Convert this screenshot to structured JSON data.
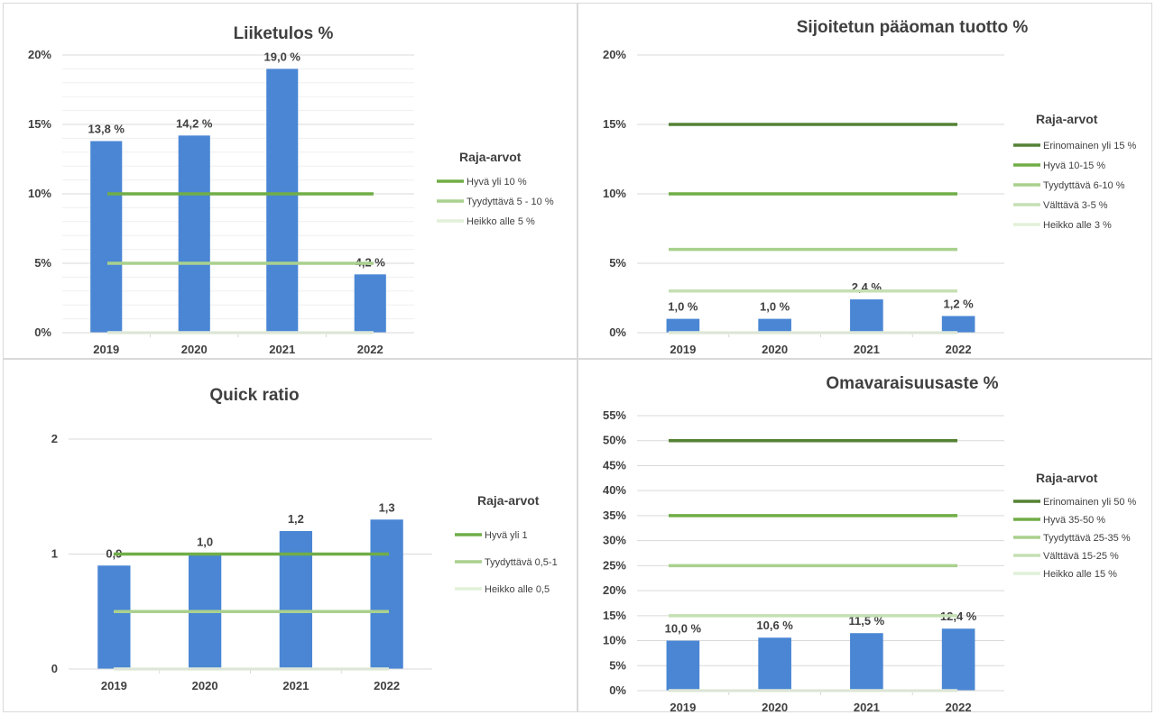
{
  "chart_data": [
    {
      "type": "bar",
      "title": "Liiketulos %",
      "categories": [
        "2019",
        "2020",
        "2021",
        "2022"
      ],
      "values": [
        13.8,
        14.2,
        19.0,
        4.2
      ],
      "value_labels": [
        "13,8 %",
        "14,2 %",
        "19,0 %",
        "4,2 %"
      ],
      "ylim": [
        0,
        20
      ],
      "yticks": [
        0,
        5,
        10,
        15,
        20
      ],
      "ytick_labels": [
        "0%",
        "5%",
        "10%",
        "15%",
        "20%"
      ],
      "minor_grid": true,
      "legend_title": "Raja-arvot",
      "legend_position": "right",
      "thresholds": [
        {
          "name": "Hyvä yli 10 %",
          "value": 10,
          "color": "#70ad47"
        },
        {
          "name": "Tyydyttävä 5 - 10 %",
          "value": 5,
          "color": "#a9d18e"
        },
        {
          "name": "Heikko alle 5 %",
          "value": 0,
          "color": "#e2f0d9"
        }
      ],
      "bar_color": "#4a86d4"
    },
    {
      "type": "bar",
      "title": "Sijoitetun pääoman tuotto %",
      "categories": [
        "2019",
        "2020",
        "2021",
        "2022"
      ],
      "values": [
        1.0,
        1.0,
        2.4,
        1.2
      ],
      "value_labels": [
        "1,0 %",
        "1,0 %",
        "2,4 %",
        "1,2 %"
      ],
      "ylim": [
        0,
        20
      ],
      "yticks": [
        0,
        5,
        10,
        15,
        20
      ],
      "ytick_labels": [
        "0%",
        "5%",
        "10%",
        "15%",
        "20%"
      ],
      "minor_grid": false,
      "legend_title": "Raja-arvot",
      "legend_position": "right",
      "thresholds": [
        {
          "name": "Erinomainen yli 15 %",
          "value": 15,
          "color": "#548235"
        },
        {
          "name": "Hyvä 10-15 %",
          "value": 10,
          "color": "#70ad47"
        },
        {
          "name": "Tyydyttävä 6-10 %",
          "value": 6,
          "color": "#a9d18e"
        },
        {
          "name": "Välttävä 3-5 %",
          "value": 3,
          "color": "#c5e0b4"
        },
        {
          "name": "Heikko alle 3 %",
          "value": 0,
          "color": "#e2f0d9"
        }
      ],
      "bar_color": "#4a86d4"
    },
    {
      "type": "bar",
      "title": "Quick ratio",
      "categories": [
        "2019",
        "2020",
        "2021",
        "2022"
      ],
      "values": [
        0.9,
        1.0,
        1.2,
        1.3
      ],
      "value_labels": [
        "0,9",
        "1,0",
        "1,2",
        "1,3"
      ],
      "ylim": [
        0,
        2
      ],
      "yticks": [
        0,
        1,
        2
      ],
      "ytick_labels": [
        "0",
        "1",
        "2"
      ],
      "minor_grid": false,
      "legend_title": "Raja-arvot",
      "legend_position": "right",
      "thresholds": [
        {
          "name": "Hyvä yli 1",
          "value": 1,
          "color": "#70ad47"
        },
        {
          "name": "Tyydyttävä 0,5-1",
          "value": 0.5,
          "color": "#a9d18e"
        },
        {
          "name": "Heikko alle 0,5",
          "value": 0,
          "color": "#e2f0d9"
        }
      ],
      "bar_color": "#4a86d4"
    },
    {
      "type": "bar",
      "title": "Omavaraisuusaste %",
      "categories": [
        "2019",
        "2020",
        "2021",
        "2022"
      ],
      "values": [
        10.0,
        10.6,
        11.5,
        12.4
      ],
      "value_labels": [
        "10,0 %",
        "10,6 %",
        "11,5 %",
        "12,4 %"
      ],
      "ylim": [
        0,
        55
      ],
      "yticks": [
        0,
        5,
        10,
        15,
        20,
        25,
        30,
        35,
        40,
        45,
        50,
        55
      ],
      "ytick_labels": [
        "0%",
        "5%",
        "10%",
        "15%",
        "20%",
        "25%",
        "30%",
        "35%",
        "40%",
        "45%",
        "50%",
        "55%"
      ],
      "minor_grid": false,
      "legend_title": "Raja-arvot",
      "legend_position": "right",
      "thresholds": [
        {
          "name": "Erinomainen yli 50 %",
          "value": 50,
          "color": "#548235"
        },
        {
          "name": "Hyvä 35-50 %",
          "value": 35,
          "color": "#70ad47"
        },
        {
          "name": "Tyydyttävä 25-35 %",
          "value": 25,
          "color": "#a9d18e"
        },
        {
          "name": "Välttävä 15-25 %",
          "value": 15,
          "color": "#c5e0b4"
        },
        {
          "name": "Heikko alle 15 %",
          "value": 0,
          "color": "#e2f0d9"
        }
      ],
      "bar_color": "#4a86d4"
    }
  ]
}
